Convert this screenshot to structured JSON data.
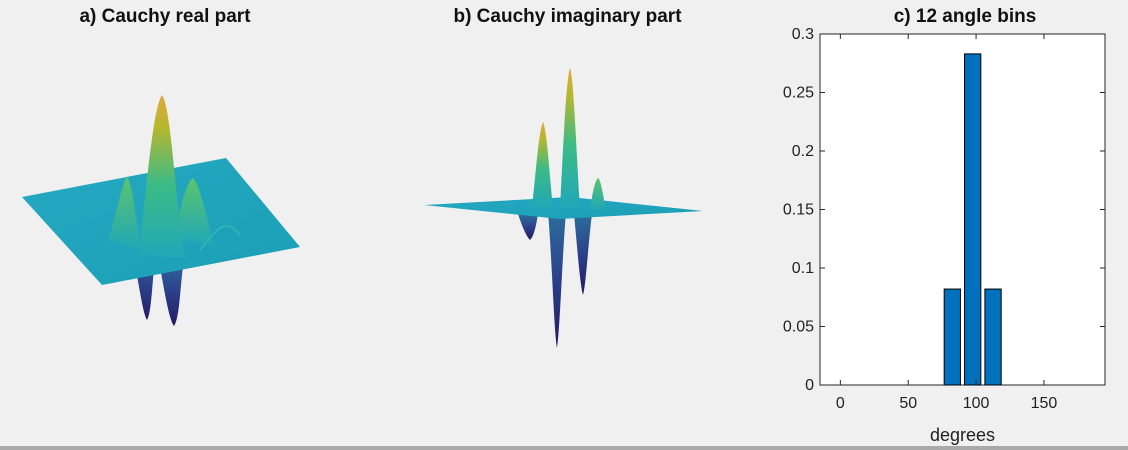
{
  "panels": {
    "a_title": "a) Cauchy real part",
    "b_title": "b) Cauchy imaginary part",
    "c_title": "c) 12 angle bins"
  },
  "colors": {
    "background": "#f0f0f0",
    "bar_fill": "#0072bd",
    "surface_low": "#2a1f73",
    "surface_flat": "#1fa5c0",
    "surface_mid": "#3cb88a",
    "surface_high": "#d9b52a"
  },
  "chart_data": [
    {
      "type": "surface",
      "title": "a) Cauchy real part",
      "description_of_surface": "Cauchy wavelet real part shown as 3D surface"
    },
    {
      "type": "surface",
      "title": "b) Cauchy imaginary part"
    },
    {
      "type": "bar",
      "title": "c) 12 angle bins",
      "xlabel": "degrees",
      "ylabel": "",
      "x": [
        7.5,
        22.5,
        37.5,
        52.5,
        67.5,
        82.5,
        97.5,
        112.5,
        127.5,
        142.5,
        157.5,
        172.5
      ],
      "values": [
        0,
        0,
        0,
        0,
        0,
        0.082,
        0.283,
        0.082,
        0,
        0,
        0,
        0
      ],
      "xlim": [
        -15,
        195
      ],
      "ylim": [
        0,
        0.3
      ],
      "xticks": [
        0,
        50,
        100,
        150
      ],
      "xtick_labels": [
        "0",
        "50",
        "100",
        "150"
      ],
      "yticks": [
        0,
        0.05,
        0.1,
        0.15,
        0.2,
        0.25,
        0.3
      ],
      "ytick_labels": [
        "0",
        "0.05",
        "0.1",
        "0.15",
        "0.2",
        "0.25",
        "0.3"
      ],
      "grid": false
    }
  ]
}
